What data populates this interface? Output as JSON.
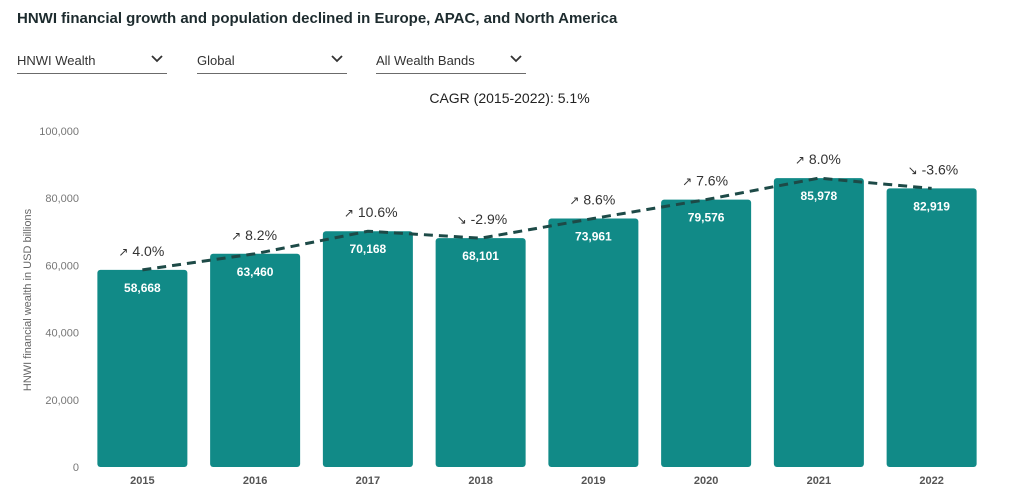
{
  "title": "HNWI financial growth and population declined in Europe, APAC, and North America",
  "filters": [
    {
      "selected": "HNWI Wealth"
    },
    {
      "selected": "Global"
    },
    {
      "selected": "All Wealth Bands"
    }
  ],
  "colors": {
    "bar": "#118a87",
    "trend": "#1d4a47",
    "bar_label": "#ffffff"
  },
  "chart_data": {
    "type": "bar",
    "title": "CAGR (2015-2022): 5.1%",
    "xlabel": "",
    "ylabel": "HNWI financial wealth in USD billions",
    "categories": [
      "2015",
      "2016",
      "2017",
      "2018",
      "2019",
      "2020",
      "2021",
      "2022"
    ],
    "values": [
      58668,
      63460,
      70168,
      68101,
      73961,
      79576,
      85978,
      82919
    ],
    "value_labels": [
      "58,668",
      "63,460",
      "70,168",
      "68,101",
      "73,961",
      "79,576",
      "85,978",
      "82,919"
    ],
    "growth": [
      {
        "arrow": "↗",
        "text": "4.0%"
      },
      {
        "arrow": "↗",
        "text": "8.2%"
      },
      {
        "arrow": "↗",
        "text": "10.6%"
      },
      {
        "arrow": "↘",
        "text": "-2.9%"
      },
      {
        "arrow": "↗",
        "text": "8.6%"
      },
      {
        "arrow": "↗",
        "text": "7.6%"
      },
      {
        "arrow": "↗",
        "text": "8.0%"
      },
      {
        "arrow": "↘",
        "text": "-3.6%"
      }
    ],
    "yticks": [
      0,
      20000,
      40000,
      60000,
      80000,
      100000
    ],
    "ytick_labels": [
      "0",
      "20,000",
      "40,000",
      "60,000",
      "80,000",
      "100,000"
    ],
    "ylim": [
      0,
      100000
    ],
    "grid": false,
    "trend_line": "dashed"
  }
}
